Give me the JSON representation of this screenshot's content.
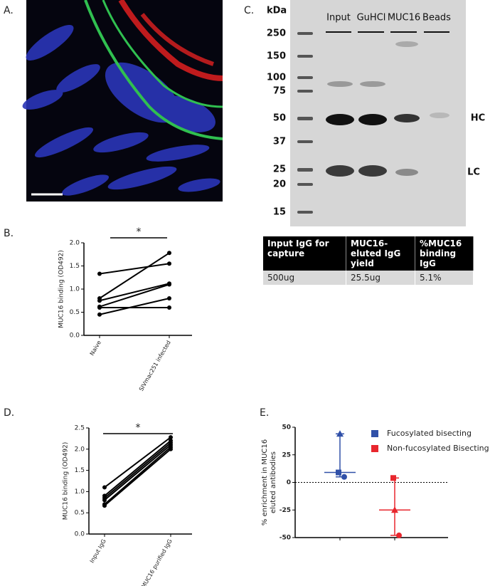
{
  "panel_labels": [
    "A.",
    "B.",
    "C.",
    "D.",
    "E."
  ],
  "gel": {
    "unit": "kDa",
    "lanes": [
      "Input",
      "GuHCl",
      "MUC16",
      "Beads"
    ],
    "ladder": [
      "250",
      "150",
      "100",
      "75",
      "50",
      "37",
      "25",
      "20",
      "15"
    ],
    "bands": [
      "HC",
      "LC"
    ]
  },
  "table": {
    "header": [
      "Input IgG for capture",
      "MUC16-eluted IgG yield",
      "%MUC16 binding IgG"
    ],
    "rows": [
      [
        "500ug",
        "25.5ug",
        "5.1%"
      ]
    ]
  },
  "chart_data": [
    {
      "type": "line",
      "y_label": "MUC16 binding (OD492)",
      "categories": [
        "Naive",
        "SIVmac251 infected"
      ],
      "color": "#000000",
      "ylim": [
        0,
        2
      ],
      "yticks": [
        {
          "value": 0,
          "label": "0.0"
        },
        0.5,
        {
          "value": 1,
          "label": "1.0"
        },
        1.5,
        {
          "value": 2,
          "label": "2.0"
        }
      ],
      "annotation": "*",
      "series": [
        {
          "values": [
            1.33,
            1.55
          ]
        },
        {
          "values": [
            0.8,
            1.78
          ]
        },
        {
          "values": [
            0.75,
            1.12
          ]
        },
        {
          "values": [
            0.62,
            1.1
          ]
        },
        {
          "values": [
            0.6,
            0.6
          ]
        },
        {
          "values": [
            0.45,
            0.8
          ]
        }
      ]
    },
    {
      "type": "line",
      "y_label": "MUC16 binding (OD492)",
      "categories": [
        "Input IgG",
        "MUC16 purified IgG"
      ],
      "color": "#000000",
      "ylim": [
        0,
        2.5
      ],
      "yticks": [
        {
          "value": 0,
          "label": "0.0"
        },
        0.5,
        {
          "value": 1,
          "label": "1.0"
        },
        1.5,
        {
          "value": 2,
          "label": "2.0"
        },
        2.5
      ],
      "annotation": "*",
      "series": [
        {
          "values": [
            1.1,
            2.28
          ]
        },
        {
          "values": [
            0.9,
            2.2
          ]
        },
        {
          "values": [
            0.85,
            2.15
          ]
        },
        {
          "values": [
            0.8,
            2.1
          ]
        },
        {
          "values": [
            0.7,
            2.05
          ]
        },
        {
          "values": [
            0.67,
            2.0
          ]
        }
      ]
    },
    {
      "type": "scatter",
      "y_label": [
        "% enrichment in MUC16",
        "eluted antibodies"
      ],
      "ylim": [
        -50,
        50
      ],
      "yticks": [
        -50,
        -25,
        0,
        25,
        50
      ],
      "reference_line": 0,
      "series": [
        {
          "name": "Fucosylated bisecting",
          "color": "#3050a8",
          "values": [
            44,
            9,
            5
          ],
          "markers": [
            "triangle",
            "square",
            "circle"
          ],
          "median": 9
        },
        {
          "name": "Non-fucosylated Bisecting",
          "color": "#e8262d",
          "values": [
            4,
            -25,
            -48
          ],
          "markers": [
            "square",
            "triangle",
            "circle"
          ],
          "median": -25
        }
      ]
    }
  ]
}
